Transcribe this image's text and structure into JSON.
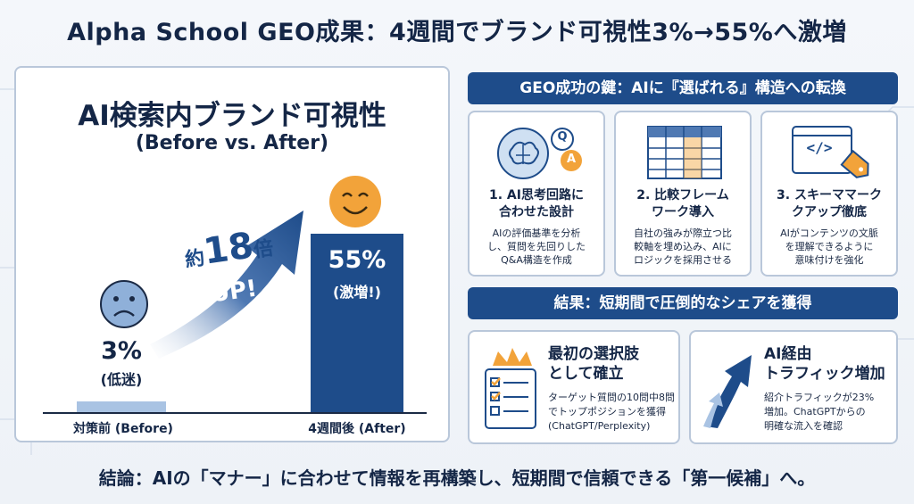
{
  "title": "Alpha School GEO成果：4週間でブランド可視性3%→55%へ激増",
  "left": {
    "title": "AI検索内ブランド可視性",
    "subtitle": "(Before vs. After)",
    "multiplier_prefix": "約",
    "multiplier_number": "18",
    "multiplier_suffix": "倍",
    "multiplier_up": "UP!",
    "chart_data": {
      "type": "bar",
      "categories": [
        "対策前 (Before)",
        "4週間後 (After)"
      ],
      "values": [
        3,
        55
      ],
      "value_labels": [
        "3%",
        "55%"
      ],
      "value_notes": [
        "(低迷)",
        "(激増!)"
      ],
      "ylim": [
        0,
        60
      ]
    }
  },
  "keys": {
    "header": "GEO成功の鍵：AIに『選ばれる』構造への転換",
    "cards": [
      {
        "title_lines": [
          "1. AI思考回路に",
          "合わせた設計"
        ],
        "desc_lines": [
          "AIの評価基準を分析",
          "し、質問を先回りした",
          "Q&A構造を作成"
        ],
        "icon": "brain-qa-icon",
        "icon_q": "Q",
        "icon_a": "A"
      },
      {
        "title_lines": [
          "2. 比較フレーム",
          "ワーク導入"
        ],
        "desc_lines": [
          "自社の強みが際立つ比",
          "較軸を埋め込み、AIに",
          "ロジックを採用させる"
        ],
        "icon": "comparison-table-icon"
      },
      {
        "title_lines": [
          "3. スキーママーク",
          "クアップ徹底"
        ],
        "desc_lines": [
          "AIがコンテンツの文脈",
          "を理解できるように",
          "意味付けを強化"
        ],
        "icon": "code-tag-icon",
        "icon_text": "</>"
      }
    ]
  },
  "results": {
    "header": "結果：短期間で圧倒的なシェアを獲得",
    "cards": [
      {
        "title_lines": [
          "最初の選択肢",
          "として確立"
        ],
        "desc_lines": [
          "ターゲット質問の10問中8問",
          "でトップポジションを獲得",
          "(ChatGPT/Perplexity)"
        ],
        "icon": "crown-checklist-icon"
      },
      {
        "title_lines": [
          "AI経由",
          "トラフィック増加"
        ],
        "desc_lines": [
          "紹介トラフィックが23%",
          "増加。ChatGPTからの",
          "明確な流入を確認"
        ],
        "icon": "growth-arrow-icon"
      }
    ]
  },
  "conclusion": "結論：AIの「マナー」に合わせて情報を再構築し、短期間で信頼できる「第一候補」へ。",
  "colors": {
    "navy": "#1e4c8a",
    "light_blue": "#a9c3e3",
    "face_before": "#8fb0d9",
    "face_after": "#f2a33a"
  }
}
